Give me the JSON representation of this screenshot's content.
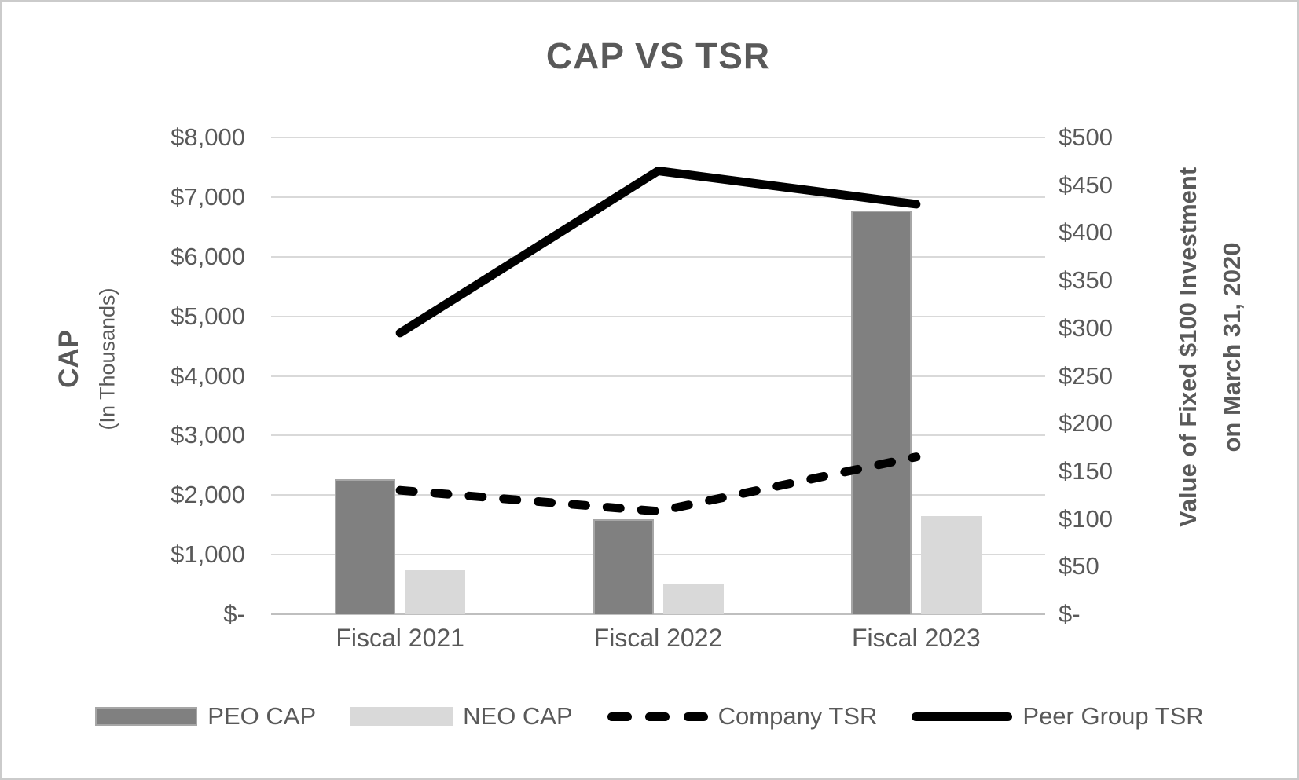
{
  "title": "CAP VS TSR",
  "left_axis": {
    "title": "CAP",
    "subtitle": "(In Thousands)"
  },
  "right_axis": {
    "title_line1": "Value of Fixed $100 Investment",
    "title_line2": "on March 31, 2020"
  },
  "colors": {
    "text": "#595959",
    "gridline": "#d9d9d9",
    "axis_line": "#bfbfbf",
    "peo_bar": "#808080",
    "peo_bar_border": "#a6a6a6",
    "neo_bar": "#d9d9d9",
    "tsr_line": "#000000",
    "frame_border": "#cbcbcb",
    "background": "#ffffff"
  },
  "chart_data": {
    "type": "bar",
    "subtype": "combo bar + line with dual y-axes",
    "title": "CAP VS TSR",
    "categories": [
      "Fiscal 2021",
      "Fiscal 2022",
      "Fiscal 2023"
    ],
    "series": [
      {
        "name": "PEO CAP",
        "type": "bar",
        "axis": "left",
        "color": "#808080",
        "border_color": "#a6a6a6",
        "values": [
          2270,
          1600,
          6770
        ]
      },
      {
        "name": "NEO CAP",
        "type": "bar",
        "axis": "left",
        "color": "#d9d9d9",
        "values": [
          740,
          500,
          1650
        ]
      },
      {
        "name": "Company TSR",
        "type": "line",
        "line_style": "dashed",
        "axis": "right",
        "color": "#000000",
        "values": [
          130,
          108,
          165
        ]
      },
      {
        "name": "Peer Group TSR",
        "type": "line",
        "line_style": "solid",
        "axis": "right",
        "color": "#000000",
        "values": [
          295,
          465,
          430
        ]
      }
    ],
    "left_axis_label": "CAP (In Thousands)",
    "right_axis_label": "Value of Fixed $100 Investment on March 31, 2020",
    "left_ylim": [
      0,
      8000
    ],
    "right_ylim": [
      0,
      500
    ],
    "left_ticks": [
      {
        "label": "$-",
        "value": 0
      },
      {
        "label": "$1,000",
        "value": 1000
      },
      {
        "label": "$2,000",
        "value": 2000
      },
      {
        "label": "$3,000",
        "value": 3000
      },
      {
        "label": "$4,000",
        "value": 4000
      },
      {
        "label": "$5,000",
        "value": 5000
      },
      {
        "label": "$6,000",
        "value": 6000
      },
      {
        "label": "$7,000",
        "value": 7000
      },
      {
        "label": "$8,000",
        "value": 8000
      }
    ],
    "right_ticks": [
      {
        "label": "$-",
        "value": 0
      },
      {
        "label": "$50",
        "value": 50
      },
      {
        "label": "$100",
        "value": 100
      },
      {
        "label": "$150",
        "value": 150
      },
      {
        "label": "$200",
        "value": 200
      },
      {
        "label": "$250",
        "value": 250
      },
      {
        "label": "$300",
        "value": 300
      },
      {
        "label": "$350",
        "value": 350
      },
      {
        "label": "$400",
        "value": 400
      },
      {
        "label": "$450",
        "value": 450
      },
      {
        "label": "$500",
        "value": 500
      }
    ],
    "grid": true,
    "legend_position": "bottom"
  }
}
